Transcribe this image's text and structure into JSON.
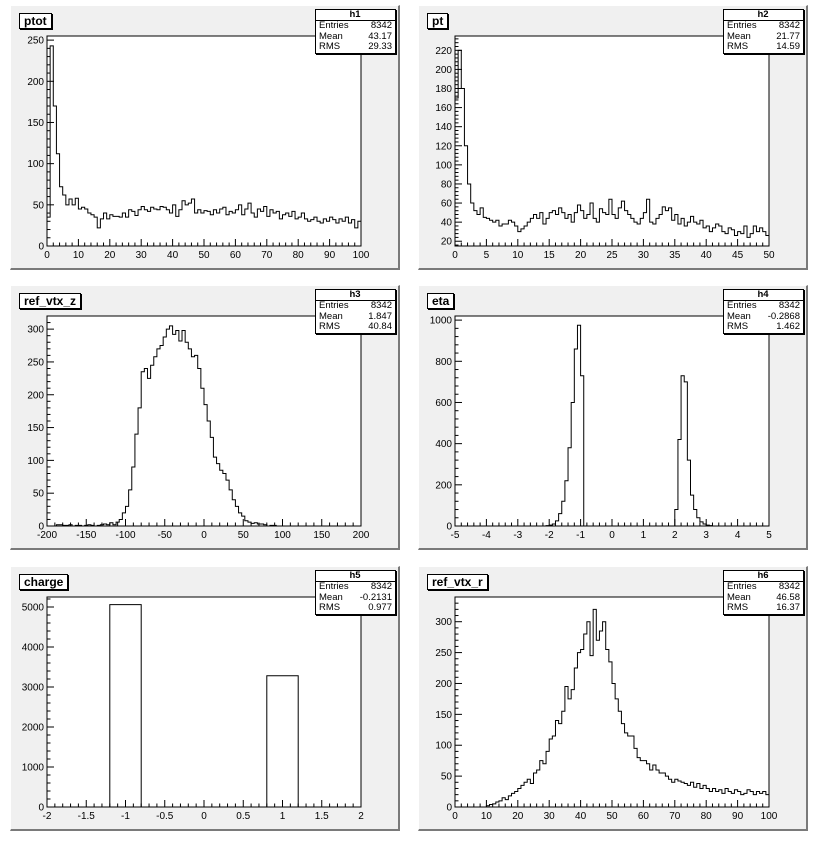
{
  "pads": [
    {
      "id": "ptot",
      "title": "ptot",
      "stats": {
        "name": "h1",
        "rows": [
          [
            "Entries",
            "8342"
          ],
          [
            "Mean",
            "43.17"
          ],
          [
            "RMS",
            "29.33"
          ]
        ]
      },
      "chart_data": {
        "type": "bar",
        "style": "step-histogram",
        "x_range": [
          0,
          100
        ],
        "y_range": [
          0,
          255
        ],
        "bins": 100,
        "values": [
          35,
          243,
          170,
          112,
          72,
          62,
          50,
          57,
          50,
          58,
          45,
          47,
          45,
          40,
          38,
          35,
          22,
          33,
          40,
          33,
          38,
          36,
          36,
          35,
          40,
          35,
          44,
          42,
          37,
          44,
          48,
          44,
          42,
          47,
          45,
          44,
          48,
          47,
          44,
          40,
          50,
          36,
          44,
          55,
          50,
          52,
          57,
          40,
          44,
          40,
          43,
          42,
          38,
          44,
          40,
          45,
          47,
          38,
          42,
          40,
          44,
          50,
          38,
          45,
          52,
          40,
          35,
          45,
          42,
          48,
          36,
          44,
          40,
          42,
          33,
          38,
          40,
          36,
          42,
          33,
          35,
          40,
          33,
          30,
          32,
          35,
          30,
          28,
          33,
          30,
          35,
          32,
          28,
          33,
          30,
          35,
          28,
          32,
          22,
          30
        ],
        "x_ticks": [
          0,
          10,
          20,
          30,
          40,
          50,
          60,
          70,
          80,
          90,
          100
        ],
        "y_ticks": [
          0,
          50,
          100,
          150,
          200,
          250
        ]
      }
    },
    {
      "id": "pt",
      "title": "pt",
      "stats": {
        "name": "h2",
        "rows": [
          [
            "Entries",
            "8342"
          ],
          [
            "Mean",
            "21.77"
          ],
          [
            "RMS",
            "14.59"
          ]
        ]
      },
      "chart_data": {
        "type": "bar",
        "style": "step-histogram",
        "x_range": [
          0,
          50
        ],
        "y_range": [
          15,
          235
        ],
        "bins": 100,
        "values": [
          170,
          220,
          180,
          120,
          80,
          60,
          52,
          48,
          55,
          45,
          44,
          42,
          40,
          42,
          36,
          38,
          38,
          42,
          40,
          36,
          30,
          33,
          36,
          40,
          44,
          48,
          44,
          50,
          38,
          44,
          50,
          52,
          48,
          55,
          50,
          44,
          48,
          40,
          50,
          58,
          52,
          44,
          48,
          60,
          44,
          40,
          54,
          50,
          48,
          64,
          48,
          44,
          55,
          62,
          52,
          48,
          44,
          40,
          38,
          44,
          50,
          64,
          40,
          38,
          44,
          48,
          56,
          52,
          55,
          42,
          48,
          38,
          44,
          36,
          40,
          46,
          40,
          38,
          42,
          34,
          36,
          30,
          34,
          38,
          36,
          30,
          28,
          34,
          32,
          26,
          30,
          28,
          36,
          24,
          28,
          36,
          30,
          34,
          30,
          26
        ],
        "x_ticks": [
          0,
          5,
          10,
          15,
          20,
          25,
          30,
          35,
          40,
          45,
          50
        ],
        "y_ticks": [
          20,
          40,
          60,
          80,
          100,
          120,
          140,
          160,
          180,
          200,
          220
        ]
      }
    },
    {
      "id": "ref_vtx_z",
      "title": "ref_vtx_z",
      "stats": {
        "name": "h3",
        "rows": [
          [
            "Entries",
            "8342"
          ],
          [
            "Mean",
            "1.847"
          ],
          [
            "RMS",
            "40.84"
          ]
        ]
      },
      "chart_data": {
        "type": "bar",
        "style": "step-histogram",
        "x_range": [
          -200,
          200
        ],
        "y_range": [
          0,
          320
        ],
        "bins": 100,
        "values": [
          0,
          0,
          0,
          2,
          2,
          1,
          1,
          2,
          0,
          1,
          1,
          0,
          1,
          2,
          1,
          0,
          1,
          2,
          3,
          2,
          5,
          2,
          6,
          10,
          20,
          30,
          55,
          90,
          140,
          180,
          235,
          240,
          225,
          245,
          258,
          270,
          275,
          288,
          300,
          305,
          292,
          298,
          282,
          298,
          280,
          270,
          258,
          260,
          240,
          210,
          185,
          160,
          135,
          105,
          95,
          85,
          80,
          70,
          55,
          40,
          30,
          20,
          15,
          8,
          6,
          4,
          5,
          3,
          3,
          2,
          0,
          1,
          1,
          0,
          0,
          0,
          0,
          0,
          0,
          0,
          0,
          0,
          0,
          0,
          0,
          0,
          0,
          0,
          0,
          0,
          0,
          0,
          0,
          0,
          0,
          0,
          0,
          0,
          0,
          0
        ],
        "x_ticks": [
          -200,
          -150,
          -100,
          -50,
          0,
          50,
          100,
          150,
          200
        ],
        "y_ticks": [
          0,
          50,
          100,
          150,
          200,
          250,
          300
        ]
      }
    },
    {
      "id": "eta",
      "title": "eta",
      "stats": {
        "name": "h4",
        "rows": [
          [
            "Entries",
            "8342"
          ],
          [
            "Mean",
            "-0.2868"
          ],
          [
            "RMS",
            "1.462"
          ]
        ]
      },
      "chart_data": {
        "type": "bar",
        "style": "step-histogram",
        "x_range": [
          -5,
          5
        ],
        "y_range": [
          0,
          1020
        ],
        "bins": 100,
        "values": [
          0,
          0,
          0,
          0,
          0,
          0,
          0,
          0,
          0,
          0,
          0,
          0,
          0,
          0,
          0,
          0,
          0,
          0,
          0,
          0,
          0,
          0,
          0,
          0,
          0,
          0,
          0,
          0,
          0,
          2,
          4,
          10,
          25,
          60,
          120,
          220,
          380,
          600,
          860,
          975,
          730,
          0,
          0,
          0,
          0,
          0,
          0,
          0,
          0,
          0,
          0,
          0,
          0,
          0,
          0,
          0,
          0,
          0,
          0,
          0,
          0,
          0,
          0,
          0,
          0,
          0,
          0,
          0,
          0,
          0,
          80,
          420,
          730,
          700,
          320,
          150,
          80,
          40,
          20,
          10,
          4,
          2,
          0,
          0,
          0,
          0,
          0,
          0,
          0,
          0,
          0,
          0,
          0,
          0,
          0,
          0,
          0,
          0,
          0,
          0
        ],
        "x_ticks": [
          -5,
          -4,
          -3,
          -2,
          -1,
          0,
          1,
          2,
          3,
          4,
          5
        ],
        "y_ticks": [
          0,
          200,
          400,
          600,
          800,
          1000
        ]
      }
    },
    {
      "id": "charge",
      "title": "charge",
      "stats": {
        "name": "h5",
        "rows": [
          [
            "Entries",
            "8342"
          ],
          [
            "Mean",
            "-0.2131"
          ],
          [
            "RMS",
            "0.977"
          ]
        ]
      },
      "chart_data": {
        "type": "bar",
        "style": "step-histogram",
        "x_range": [
          -2,
          2
        ],
        "y_range": [
          0,
          5250
        ],
        "bins": 10,
        "values": [
          0,
          0,
          5060,
          0,
          0,
          0,
          0,
          3280,
          0,
          0
        ],
        "x_ticks": [
          -2,
          -1.5,
          -1,
          -0.5,
          0,
          0.5,
          1,
          1.5,
          2
        ],
        "y_ticks": [
          0,
          1000,
          2000,
          3000,
          4000,
          5000
        ]
      }
    },
    {
      "id": "ref_vtx_r",
      "title": "ref_vtx_r",
      "stats": {
        "name": "h6",
        "rows": [
          [
            "Entries",
            "8342"
          ],
          [
            "Mean",
            "46.58"
          ],
          [
            "RMS",
            "16.37"
          ]
        ]
      },
      "chart_data": {
        "type": "bar",
        "style": "step-histogram",
        "x_range": [
          0,
          100
        ],
        "y_range": [
          0,
          340
        ],
        "bins": 100,
        "values": [
          0,
          0,
          0,
          0,
          0,
          0,
          0,
          0,
          0,
          0,
          2,
          4,
          5,
          8,
          10,
          15,
          12,
          18,
          22,
          25,
          30,
          35,
          40,
          45,
          38,
          55,
          60,
          75,
          70,
          90,
          110,
          115,
          140,
          135,
          155,
          195,
          175,
          190,
          225,
          250,
          255,
          280,
          300,
          245,
          320,
          270,
          285,
          300,
          255,
          235,
          200,
          175,
          155,
          135,
          120,
          115,
          115,
          95,
          80,
          75,
          75,
          70,
          60,
          68,
          60,
          55,
          55,
          50,
          45,
          40,
          45,
          42,
          40,
          38,
          35,
          40,
          32,
          38,
          30,
          35,
          30,
          25,
          30,
          25,
          28,
          22,
          30,
          25,
          22,
          28,
          25,
          20,
          22,
          28,
          25,
          20,
          25,
          22,
          25,
          20
        ],
        "x_ticks": [
          0,
          10,
          20,
          30,
          40,
          50,
          60,
          70,
          80,
          90,
          100
        ],
        "y_ticks": [
          0,
          50,
          100,
          150,
          200,
          250,
          300
        ]
      }
    }
  ]
}
